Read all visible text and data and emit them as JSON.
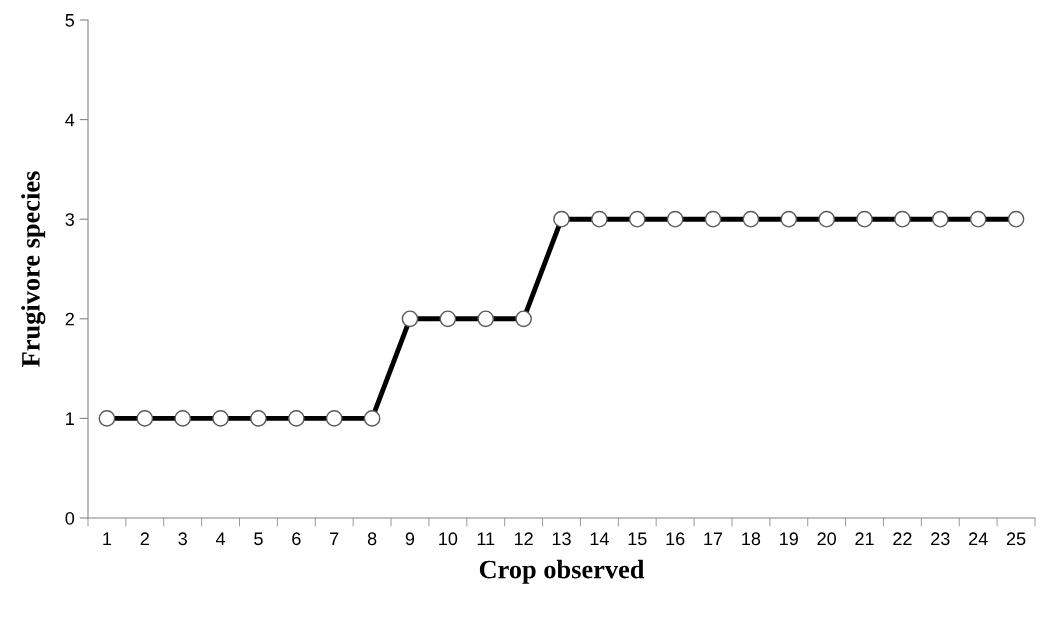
{
  "chart_data": {
    "type": "line",
    "xlabel": "Crop observed",
    "ylabel": "Frugivore species",
    "categories": [
      "1",
      "2",
      "3",
      "4",
      "5",
      "6",
      "7",
      "8",
      "9",
      "10",
      "11",
      "12",
      "13",
      "14",
      "15",
      "16",
      "17",
      "18",
      "19",
      "20",
      "21",
      "22",
      "23",
      "24",
      "25"
    ],
    "series": [
      {
        "color": "#000000",
        "values": [
          1,
          1,
          1,
          1,
          1,
          1,
          1,
          1,
          2,
          2,
          2,
          2,
          3,
          3,
          3,
          3,
          3,
          3,
          3,
          3,
          3,
          3,
          3,
          3,
          3
        ]
      }
    ],
    "ylim": [
      0,
      5
    ],
    "yticks": [
      0,
      1,
      2,
      3,
      4,
      5
    ],
    "grid": false,
    "marker": "circle",
    "line_style": "solid"
  }
}
